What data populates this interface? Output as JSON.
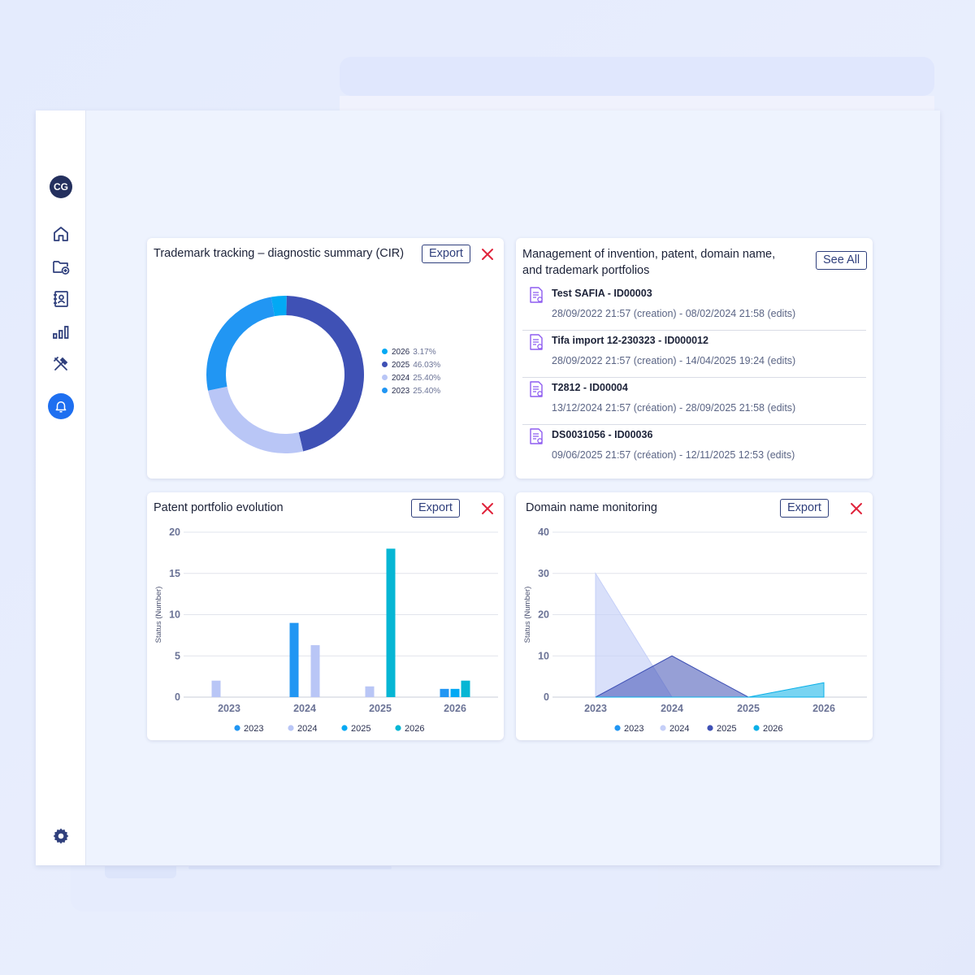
{
  "sidebar": {
    "avatar_initials": "CG",
    "icons": [
      "home-icon",
      "folder-add-icon",
      "contacts-icon",
      "bar-chart-icon",
      "tools-icon",
      "bell-icon",
      "gear-icon"
    ]
  },
  "colors": {
    "accent": "#1e6ff0",
    "navy": "#24305e",
    "danger": "#e0243b",
    "series_2023": "#2196f3",
    "series_2024": "#b9c6f6",
    "series_2025": "#3f51b5",
    "series_2026": "#06b6d4"
  },
  "trademark_card": {
    "title": "Trademark tracking – diagnostic summary (CIR)",
    "export_label": "Export",
    "legend": [
      {
        "label": "2026",
        "pct": "3.17%",
        "color": "#03a9f4"
      },
      {
        "label": "2025",
        "pct": "46.03%",
        "color": "#3f51b5"
      },
      {
        "label": "2024",
        "pct": "25.40%",
        "color": "#b9c6f6"
      },
      {
        "label": "2023",
        "pct": "25.40%",
        "color": "#2196f3"
      }
    ]
  },
  "portfolio_card": {
    "title_line1": "Management of invention, patent, domain name,",
    "title_line2": "and trademark portfolios",
    "see_all_label": "See All",
    "items": [
      {
        "name": "Test SAFIA - ID00003",
        "meta": "28/09/2022 21:57 (creation) - 08/02/2024 21:58 (edits)"
      },
      {
        "name": "Tifa import 12-230323 - ID000012",
        "meta": "28/09/2022 21:57 (creation) - 14/04/2025 19:24 (edits)"
      },
      {
        "name": "T2812 - ID00004",
        "meta": "13/12/2024 21:57 (création) - 28/09/2025 21:58 (edits)"
      },
      {
        "name": "DS0031056 - ID00036",
        "meta": "09/06/2025 21:57 (création) - 12/11/2025 12:53 (edits)"
      }
    ]
  },
  "patent_card": {
    "title": "Patent portfolio evolution",
    "export_label": "Export"
  },
  "domain_card": {
    "title": "Domain name monitoring",
    "export_label": "Export"
  },
  "chart_data": [
    {
      "type": "pie",
      "title": "Trademark tracking – diagnostic summary (CIR)",
      "donut": true,
      "labels": [
        "2026",
        "2025",
        "2024",
        "2023"
      ],
      "values": [
        3.17,
        46.03,
        25.4,
        25.4
      ],
      "colors": [
        "#03a9f4",
        "#3f51b5",
        "#b9c6f6",
        "#2196f3"
      ],
      "legend": "right"
    },
    {
      "type": "bar",
      "title": "Patent portfolio evolution",
      "categories": [
        "2023",
        "2024",
        "2025",
        "2026"
      ],
      "series": [
        {
          "name": "2023",
          "color": "#2196f3",
          "values": [
            0,
            9,
            0,
            1
          ]
        },
        {
          "name": "2024",
          "color": "#b9c6f6",
          "values": [
            2,
            6.3,
            1.3,
            0
          ]
        },
        {
          "name": "2025",
          "color": "#03a9f4",
          "values": [
            0,
            0,
            0,
            1
          ]
        },
        {
          "name": "2026",
          "color": "#06b6d4",
          "values": [
            0,
            0,
            18,
            2
          ]
        }
      ],
      "ylabel": "Status (Number)",
      "ylim": [
        0,
        20
      ],
      "yticks": [
        0,
        5,
        10,
        15,
        20
      ],
      "grid": true,
      "legend": "bottom"
    },
    {
      "type": "area",
      "title": "Domain name monitoring",
      "x": [
        "2023",
        "2024",
        "2025",
        "2026"
      ],
      "series": [
        {
          "name": "2023",
          "color": "#2196f3",
          "values": [
            0,
            0,
            0,
            0
          ]
        },
        {
          "name": "2024",
          "color": "#c5cff8",
          "values": [
            30,
            0,
            0,
            0
          ]
        },
        {
          "name": "2025",
          "color": "#3f51b5",
          "values": [
            0,
            10,
            0,
            0
          ]
        },
        {
          "name": "2026",
          "color": "#0ab0e8",
          "values": [
            0,
            0,
            0,
            3.5
          ]
        }
      ],
      "ylabel": "Status (Number)",
      "ylim": [
        0,
        40
      ],
      "yticks": [
        0,
        10,
        20,
        30,
        40
      ],
      "grid": true,
      "legend": "bottom"
    }
  ]
}
